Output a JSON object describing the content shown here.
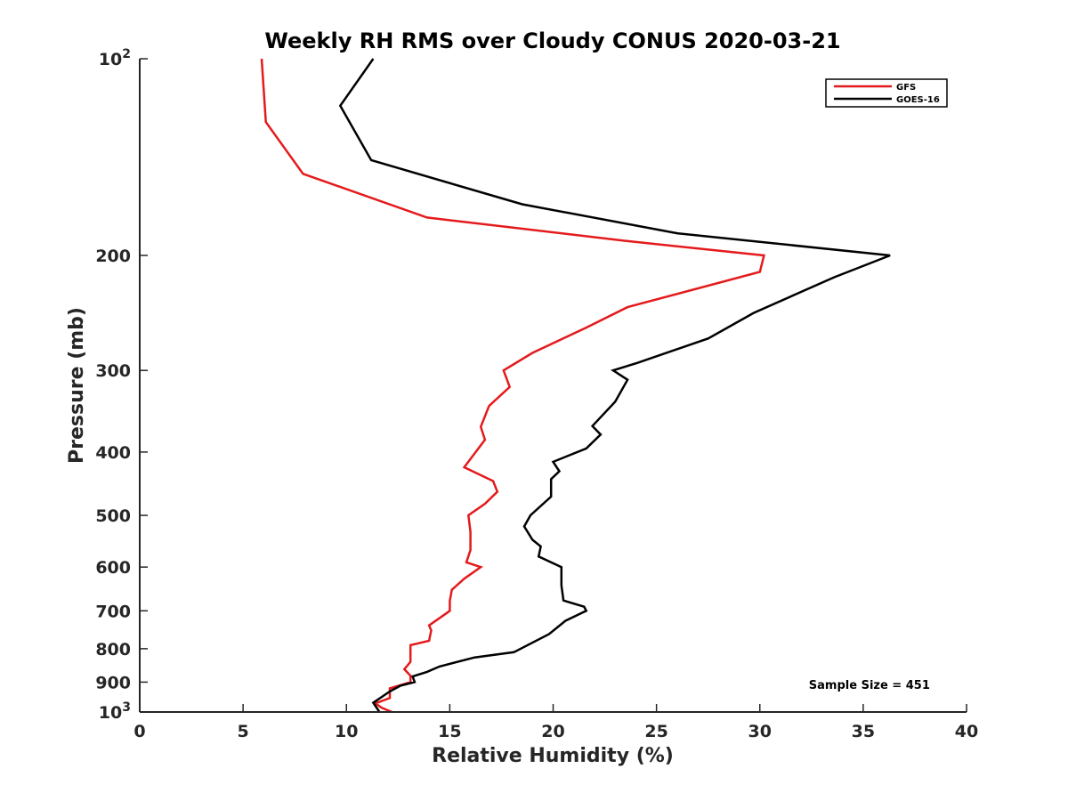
{
  "chart_data": {
    "type": "line",
    "title": "Weekly RH RMS over Cloudy CONUS 2020-03-21",
    "xlabel": "Relative Humidity (%)",
    "ylabel": "Pressure (mb)",
    "xlim": [
      0,
      40
    ],
    "ylim": [
      100,
      1000
    ],
    "yscale": "log",
    "y_reversed": true,
    "grid": false,
    "legend_position": "top-right",
    "x_ticks": [
      {
        "value": 0,
        "label": "0"
      },
      {
        "value": 5,
        "label": "5"
      },
      {
        "value": 10,
        "label": "10"
      },
      {
        "value": 15,
        "label": "15"
      },
      {
        "value": 20,
        "label": "20"
      },
      {
        "value": 25,
        "label": "25"
      },
      {
        "value": 30,
        "label": "30"
      },
      {
        "value": 35,
        "label": "35"
      },
      {
        "value": 40,
        "label": "40"
      }
    ],
    "y_ticks": [
      {
        "value": 100,
        "label": "10",
        "sup": "2"
      },
      {
        "value": 200,
        "label": "200",
        "sup": ""
      },
      {
        "value": 300,
        "label": "300",
        "sup": ""
      },
      {
        "value": 400,
        "label": "400",
        "sup": ""
      },
      {
        "value": 500,
        "label": "500",
        "sup": ""
      },
      {
        "value": 600,
        "label": "600",
        "sup": ""
      },
      {
        "value": 700,
        "label": "700",
        "sup": ""
      },
      {
        "value": 800,
        "label": "800",
        "sup": ""
      },
      {
        "value": 900,
        "label": "900",
        "sup": ""
      },
      {
        "value": 1000,
        "label": "10",
        "sup": "3"
      }
    ],
    "series": [
      {
        "name": "GFS",
        "color": "#e41a1c",
        "points": [
          [
            5.9,
            100
          ],
          [
            6.1,
            125
          ],
          [
            7.9,
            150
          ],
          [
            13.9,
            175
          ],
          [
            23.5,
            190
          ],
          [
            30.2,
            200
          ],
          [
            30.0,
            212
          ],
          [
            23.6,
            240
          ],
          [
            21.6,
            258
          ],
          [
            19.0,
            282
          ],
          [
            17.6,
            300
          ],
          [
            17.9,
            318
          ],
          [
            16.9,
            340
          ],
          [
            16.5,
            366
          ],
          [
            16.7,
            383
          ],
          [
            15.7,
            422
          ],
          [
            17.1,
            443
          ],
          [
            17.3,
            460
          ],
          [
            16.7,
            480
          ],
          [
            15.9,
            500
          ],
          [
            16.0,
            530
          ],
          [
            16.0,
            565
          ],
          [
            15.8,
            590
          ],
          [
            16.5,
            600
          ],
          [
            15.7,
            625
          ],
          [
            15.1,
            650
          ],
          [
            15.0,
            676
          ],
          [
            15.0,
            700
          ],
          [
            14.7,
            711
          ],
          [
            14.0,
            737
          ],
          [
            14.1,
            750
          ],
          [
            14.0,
            778
          ],
          [
            13.1,
            790
          ],
          [
            13.1,
            838
          ],
          [
            12.8,
            860
          ],
          [
            13.1,
            880
          ],
          [
            13.1,
            900
          ],
          [
            12.1,
            920
          ],
          [
            12.1,
            952
          ],
          [
            11.4,
            970
          ],
          [
            11.7,
            985
          ],
          [
            12.2,
            1000
          ]
        ]
      },
      {
        "name": "GOES-16",
        "color": "#000000",
        "points": [
          [
            11.3,
            100
          ],
          [
            9.7,
            118
          ],
          [
            11.2,
            143
          ],
          [
            18.5,
            167
          ],
          [
            26.0,
            185
          ],
          [
            36.3,
            200
          ],
          [
            33.6,
            216
          ],
          [
            29.7,
            245
          ],
          [
            27.5,
            268
          ],
          [
            24.1,
            292
          ],
          [
            22.9,
            300
          ],
          [
            23.6,
            310
          ],
          [
            23.0,
            335
          ],
          [
            21.9,
            365
          ],
          [
            22.3,
            376
          ],
          [
            21.6,
            395
          ],
          [
            20.0,
            414
          ],
          [
            20.3,
            428
          ],
          [
            19.9,
            440
          ],
          [
            19.9,
            468
          ],
          [
            18.9,
            500
          ],
          [
            18.6,
            520
          ],
          [
            19.0,
            545
          ],
          [
            19.4,
            558
          ],
          [
            19.3,
            578
          ],
          [
            20.4,
            600
          ],
          [
            20.4,
            640
          ],
          [
            20.5,
            675
          ],
          [
            21.5,
            690
          ],
          [
            21.6,
            700
          ],
          [
            20.6,
            725
          ],
          [
            19.8,
            760
          ],
          [
            18.1,
            810
          ],
          [
            16.2,
            825
          ],
          [
            14.5,
            852
          ],
          [
            13.9,
            868
          ],
          [
            13.2,
            882
          ],
          [
            13.3,
            900
          ],
          [
            12.6,
            912
          ],
          [
            12.1,
            930
          ],
          [
            11.3,
            968
          ],
          [
            11.6,
            1000
          ]
        ]
      }
    ],
    "annotations": [
      {
        "text": "Sample Size = 451",
        "x": 35.3,
        "y": 907
      }
    ]
  }
}
